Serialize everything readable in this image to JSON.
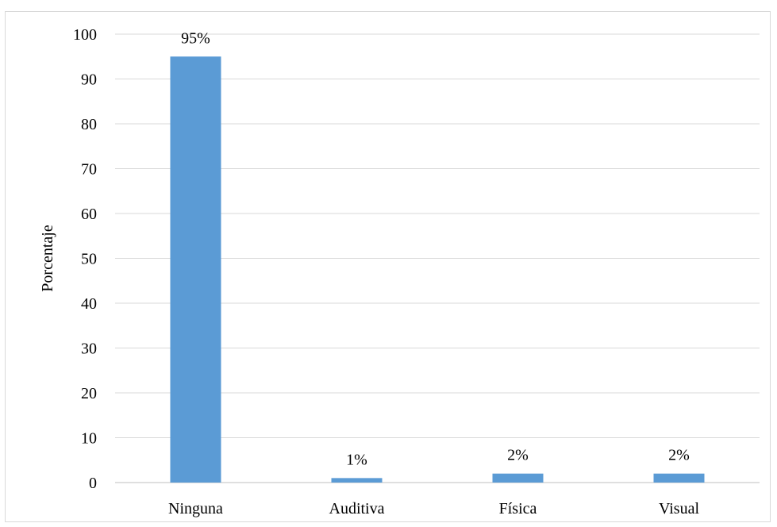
{
  "chart_data": {
    "type": "bar",
    "categories": [
      "Ninguna",
      "Auditiva",
      "Física",
      "Visual"
    ],
    "values": [
      95,
      1,
      2,
      2
    ],
    "data_labels": [
      "95%",
      "1%",
      "2%",
      "2%"
    ],
    "title": "",
    "xlabel": "",
    "ylabel": "Porcentaje",
    "ylim": [
      0,
      100
    ],
    "yticks": [
      0,
      10,
      20,
      30,
      40,
      50,
      60,
      70,
      80,
      90,
      100
    ],
    "grid": true,
    "legend": "none",
    "bar_color": "#5b9bd5",
    "gridline_color": "#d9d9d9"
  }
}
